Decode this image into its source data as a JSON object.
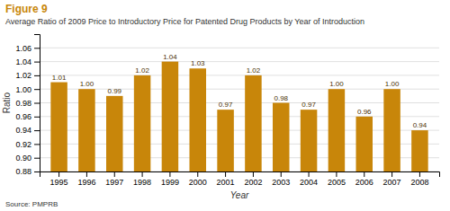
{
  "chart_data": {
    "type": "bar",
    "title": "Figure 9",
    "subtitle": "Average Ratio of 2009 Price to Introductory Price for Patented Drug Products by Year of Introduction",
    "annotations": [
      "Source: PMPRB"
    ],
    "x_label": "Year",
    "y_label": "Ratio",
    "categories": [
      "1995",
      "1996",
      "1997",
      "1998",
      "1999",
      "2000",
      "2001",
      "2002",
      "2003",
      "2004",
      "2005",
      "2006",
      "2007",
      "2008"
    ],
    "values": [
      1.01,
      1.0,
      0.99,
      1.02,
      1.04,
      1.03,
      0.97,
      1.02,
      0.98,
      0.97,
      1.0,
      0.96,
      1.0,
      0.94
    ],
    "value_labels": [
      "1.01",
      "1.00",
      "0.99",
      "1.02",
      "1.04",
      "1.03",
      "0.97",
      "1.02",
      "0.98",
      "0.97",
      "1.00",
      "0.96",
      "1.00",
      "0.94"
    ],
    "data_labels": true,
    "color": "#C8860A",
    "ylim": [
      0.88,
      1.08
    ],
    "yticks": [
      0.88,
      {
        "value": 0.9,
        "label": "0.90"
      },
      0.92,
      0.94,
      0.96,
      0.98,
      {
        "value": 1,
        "label": "1.00"
      },
      1.02,
      1.04,
      1.06
    ],
    "grid": true
  }
}
